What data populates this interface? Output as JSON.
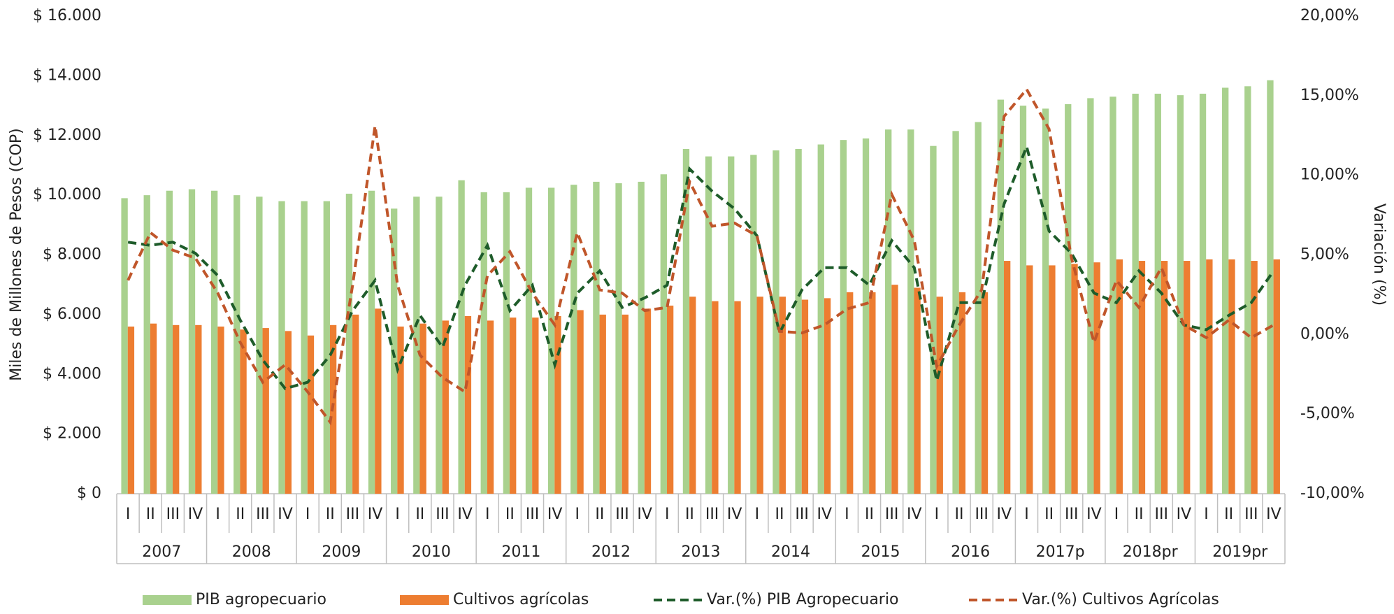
{
  "chart_data": {
    "type": "bar-line",
    "y_label": "Miles de Millones de Pesos (COP)",
    "y2_label": "Variación (%)",
    "categories": [
      "I",
      "II",
      "III",
      "IV",
      "I",
      "II",
      "III",
      "IV",
      "I",
      "II",
      "III",
      "IV",
      "I",
      "II",
      "III",
      "IV",
      "I",
      "II",
      "III",
      "IV",
      "I",
      "II",
      "III",
      "IV",
      "I",
      "II",
      "III",
      "IV",
      "I",
      "II",
      "III",
      "IV",
      "I",
      "II",
      "III",
      "IV",
      "I",
      "II",
      "III",
      "IV",
      "I",
      "II",
      "III",
      "IV",
      "I",
      "II",
      "III",
      "IV",
      "I",
      "II",
      "III",
      "IV"
    ],
    "groups": [
      "2007",
      "2008",
      "2009",
      "2010",
      "2011",
      "2012",
      "2013",
      "2014",
      "2015",
      "2016",
      "2017p",
      "2018pr",
      "2019pr"
    ],
    "ylim": [
      0,
      16000
    ],
    "yticks": [
      {
        "value": 0,
        "label": "$ 0"
      },
      {
        "value": 2000,
        "label": "$ 2.000"
      },
      {
        "value": 4000,
        "label": "$ 4.000"
      },
      {
        "value": 6000,
        "label": "$ 6.000"
      },
      {
        "value": 8000,
        "label": "$ 8.000"
      },
      {
        "value": 10000,
        "label": "$ 10.000"
      },
      {
        "value": 12000,
        "label": "$ 12.000"
      },
      {
        "value": 14000,
        "label": "$ 14.000"
      },
      {
        "value": 16000,
        "label": "$ 16.000"
      }
    ],
    "y2lim": [
      -10,
      20
    ],
    "y2ticks": [
      {
        "value": -10,
        "label": "-10,00%"
      },
      {
        "value": -5,
        "label": "-5,00%"
      },
      {
        "value": 0,
        "label": "0,00%"
      },
      {
        "value": 5,
        "label": "5,00%"
      },
      {
        "value": 10,
        "label": "10,00%"
      },
      {
        "value": 15,
        "label": "15,00%"
      },
      {
        "value": 20,
        "label": "20,00%"
      }
    ],
    "series": [
      {
        "name": "PIB agropecuario",
        "kind": "bar",
        "color": "#a9d18e",
        "values": [
          9900,
          10000,
          10150,
          10200,
          10150,
          10000,
          9950,
          9800,
          9800,
          9800,
          10050,
          10150,
          9550,
          9950,
          9950,
          10500,
          10100,
          10100,
          10250,
          10250,
          10350,
          10450,
          10400,
          10450,
          10700,
          11550,
          11300,
          11300,
          11350,
          11500,
          11550,
          11700,
          11850,
          11900,
          12200,
          12200,
          11650,
          12150,
          12450,
          13200,
          13000,
          12900,
          13050,
          13250,
          13300,
          13400,
          13400,
          13350,
          13400,
          13600,
          13650,
          13850
        ]
      },
      {
        "name": "Cultivos agrícolas",
        "kind": "bar",
        "color": "#ed7d31",
        "values": [
          5600,
          5700,
          5650,
          5650,
          5600,
          5500,
          5550,
          5450,
          5300,
          5650,
          6000,
          6200,
          5600,
          5700,
          5800,
          5950,
          5800,
          5900,
          5900,
          5950,
          6150,
          6000,
          6000,
          6200,
          6300,
          6600,
          6450,
          6450,
          6600,
          6600,
          6500,
          6550,
          6750,
          6750,
          7000,
          6900,
          6600,
          6750,
          6750,
          7800,
          7650,
          7650,
          7700,
          7750,
          7850,
          7800,
          7800,
          7800,
          7850,
          7850,
          7800,
          7850
        ]
      },
      {
        "name": "Var.(%) PIB Agropecuario",
        "kind": "line",
        "axis": "y2",
        "color": "#1e5c2a",
        "values": [
          5.8,
          5.6,
          5.8,
          5.1,
          3.7,
          0.9,
          -1.6,
          -3.4,
          -3.0,
          -1.3,
          1.5,
          3.4,
          -2.2,
          1.2,
          -0.8,
          3.1,
          5.6,
          1.5,
          3.1,
          -1.9,
          2.6,
          4.0,
          1.7,
          2.3,
          3.1,
          10.4,
          9.0,
          7.9,
          6.2,
          0.1,
          2.8,
          4.2,
          4.2,
          3.1,
          5.9,
          4.2,
          -2.9,
          2.0,
          2.0,
          8.2,
          11.8,
          6.5,
          5.1,
          2.6,
          2.0,
          4.0,
          2.6,
          0.6,
          0.3,
          1.2,
          2.0,
          4.0
        ]
      },
      {
        "name": "Var.(%) Cultivos Agrícolas",
        "kind": "line",
        "axis": "y2",
        "color": "#c0562a",
        "values": [
          3.4,
          6.4,
          5.3,
          4.8,
          2.6,
          -0.5,
          -3.0,
          -1.9,
          -3.6,
          -5.5,
          3.1,
          13.1,
          3.1,
          -1.3,
          -2.7,
          -3.6,
          3.7,
          5.2,
          2.6,
          0.6,
          6.4,
          2.8,
          2.6,
          1.5,
          1.7,
          9.6,
          6.8,
          7.0,
          6.2,
          0.2,
          0.1,
          0.6,
          1.6,
          2.0,
          8.8,
          5.9,
          -2.0,
          0.6,
          2.8,
          13.7,
          15.4,
          12.9,
          4.8,
          -0.5,
          3.4,
          1.7,
          4.2,
          0.6,
          -0.2,
          0.9,
          -0.2,
          0.6
        ]
      }
    ]
  }
}
